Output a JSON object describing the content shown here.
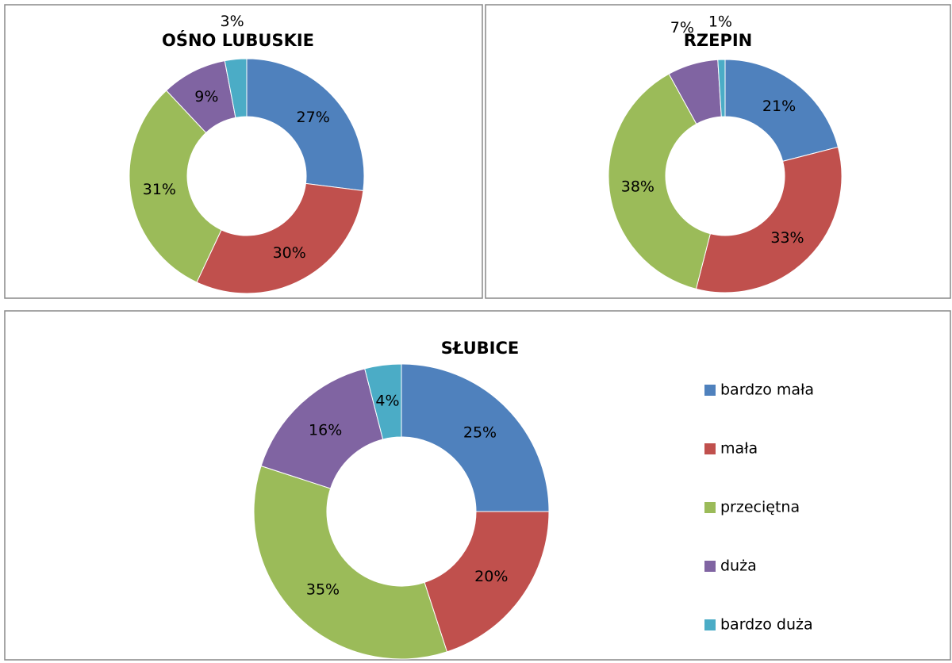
{
  "chart_data": [
    {
      "type": "donut",
      "title": "OŚNO LUBUSKIE",
      "values": [
        27,
        30,
        31,
        9,
        3
      ],
      "value_labels": [
        "27%",
        "30%",
        "31%",
        "9%",
        "3%"
      ],
      "colors": [
        "#4f81bd",
        "#c0504d",
        "#9bbb59",
        "#8064a2",
        "#4bacc6"
      ]
    },
    {
      "type": "donut",
      "title": "RZEPIN",
      "values": [
        21,
        33,
        38,
        7,
        1
      ],
      "value_labels": [
        "21%",
        "33%",
        "38%",
        "7%",
        "1%"
      ],
      "colors": [
        "#4f81bd",
        "#c0504d",
        "#9bbb59",
        "#8064a2",
        "#4bacc6"
      ]
    },
    {
      "type": "donut",
      "title": "SŁUBICE",
      "categories": [
        "bardzo mała",
        "mała",
        "przeciętna",
        "duża",
        "bardzo duża"
      ],
      "values": [
        25,
        20,
        35,
        16,
        4
      ],
      "value_labels": [
        "25%",
        "20%",
        "35%",
        "16%",
        "4%"
      ],
      "colors": [
        "#4f81bd",
        "#c0504d",
        "#9bbb59",
        "#8064a2",
        "#4bacc6"
      ],
      "legend": "right"
    }
  ]
}
